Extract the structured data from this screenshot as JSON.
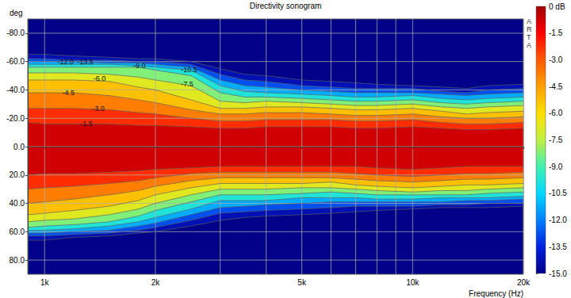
{
  "chart_data": {
    "type": "contour",
    "title": "Directivity sonogram",
    "x_label": "Frequency (Hz)",
    "y_label": "deg",
    "watermark": "ARTA",
    "log": "x",
    "grid": true,
    "xlim": [
      900,
      20000
    ],
    "xticks": [
      {
        "value": 1000,
        "label": "1k"
      },
      {
        "value": 2000,
        "label": "2k"
      },
      {
        "value": 5000,
        "label": "5k"
      },
      {
        "value": 10000,
        "label": "10k"
      },
      {
        "value": 20000,
        "label": "20k"
      }
    ],
    "x_minor_gridlines": [
      3000,
      4000,
      6000,
      7000,
      8000,
      9000
    ],
    "ylim": [
      90,
      -90
    ],
    "yticks": [
      {
        "value": -80,
        "label": "-80.0"
      },
      {
        "value": -60,
        "label": "-60.0"
      },
      {
        "value": -40,
        "label": "-40.0"
      },
      {
        "value": -20,
        "label": "-20.0"
      },
      {
        "value": 0,
        "label": "0.0"
      },
      {
        "value": 20,
        "label": "20.0"
      },
      {
        "value": 40,
        "label": "40.0"
      },
      {
        "value": 60,
        "label": "60.0"
      },
      {
        "value": 80,
        "label": "80.0"
      }
    ],
    "frequencies": [
      900,
      1000,
      1200,
      1500,
      1800,
      2000,
      2500,
      3000,
      3500,
      4000,
      5000,
      6000,
      7000,
      8000,
      10000,
      12000,
      14000,
      16000,
      20000
    ],
    "contours": [
      {
        "level": -1.5,
        "label": "-1.5",
        "label_at": [
          1300,
          -16
        ],
        "upper": [
          -17,
          -16,
          -16,
          -16,
          -15,
          -15,
          -14,
          -13,
          -13,
          -14,
          -14,
          -14,
          -13,
          -13,
          -14,
          -13,
          -12,
          -12,
          -13
        ],
        "lower": [
          20,
          19,
          19,
          18,
          17,
          16,
          15,
          14,
          14,
          14,
          14,
          14,
          14,
          15,
          16,
          15,
          14,
          14,
          14
        ]
      },
      {
        "level": -3,
        "label": "-3.0",
        "label_at": [
          1400,
          -27
        ],
        "upper": [
          -27,
          -27,
          -27,
          -26,
          -24,
          -23,
          -20,
          -18,
          -18,
          -19,
          -19,
          -19,
          -18,
          -18,
          -19,
          -17,
          -16,
          -16,
          -17
        ],
        "lower": [
          30,
          29,
          28,
          26,
          24,
          22,
          19,
          18,
          18,
          18,
          18,
          18,
          19,
          20,
          21,
          20,
          19,
          19,
          18
        ]
      },
      {
        "level": -4.5,
        "label": "-4.5",
        "label_at": [
          1160,
          -38
        ],
        "upper": [
          -38,
          -38,
          -38,
          -36,
          -33,
          -31,
          -26,
          -23,
          -23,
          -24,
          -24,
          -23,
          -22,
          -22,
          -23,
          -21,
          -20,
          -20,
          -21
        ],
        "lower": [
          40,
          39,
          37,
          34,
          31,
          28,
          24,
          22,
          22,
          22,
          22,
          22,
          23,
          24,
          25,
          24,
          23,
          23,
          22
        ]
      },
      {
        "level": -6,
        "label": "-6.0",
        "label_at": [
          1410,
          -48
        ],
        "upper": [
          -47,
          -47,
          -47,
          -46,
          -42,
          -40,
          -33,
          -27,
          -27,
          -28,
          -28,
          -27,
          -26,
          -26,
          -27,
          -25,
          -23,
          -24,
          -25
        ],
        "lower": [
          48,
          47,
          45,
          42,
          38,
          34,
          29,
          26,
          26,
          26,
          26,
          25,
          27,
          28,
          29,
          28,
          27,
          27,
          26
        ]
      },
      {
        "level": -7.5,
        "label": "-7.5",
        "label_at": [
          2440,
          -44
        ],
        "upper": [
          -52,
          -52,
          -52,
          -51,
          -49,
          -47,
          -43,
          -32,
          -31,
          -32,
          -31,
          -30,
          -29,
          -29,
          -30,
          -28,
          -27,
          -28,
          -29
        ],
        "lower": [
          53,
          52,
          51,
          48,
          44,
          40,
          34,
          30,
          30,
          30,
          29,
          29,
          30,
          31,
          32,
          31,
          31,
          30,
          29
        ]
      },
      {
        "level": -9,
        "label": "-9.0",
        "label_at": [
          1810,
          -57
        ],
        "upper": [
          -56,
          -56,
          -56,
          -56,
          -56,
          -54,
          -50,
          -38,
          -35,
          -35,
          -34,
          -33,
          -32,
          -32,
          -33,
          -31,
          -30,
          -31,
          -32
        ],
        "lower": [
          57,
          56,
          55,
          53,
          49,
          45,
          39,
          34,
          34,
          34,
          33,
          32,
          33,
          34,
          34,
          34,
          34,
          33,
          32
        ]
      },
      {
        "level": -10.5,
        "label": "-10.5",
        "label_at": [
          2470,
          -54
        ],
        "upper": [
          -58,
          -58,
          -58,
          -58,
          -57,
          -56,
          -54,
          -43,
          -39,
          -38,
          -37,
          -36,
          -35,
          -35,
          -36,
          -34,
          -33,
          -34,
          -35
        ],
        "lower": [
          59,
          59,
          58,
          56,
          53,
          50,
          44,
          38,
          38,
          38,
          36,
          36,
          36,
          37,
          37,
          36,
          36,
          36,
          35
        ]
      },
      {
        "level": -12,
        "label": "-12.0",
        "label_at": [
          1140,
          -60
        ],
        "upper": [
          -60,
          -60,
          -60,
          -59,
          -59,
          -58,
          -56,
          -47,
          -43,
          -42,
          -40,
          -39,
          -38,
          -38,
          -38,
          -37,
          -36,
          -37,
          -38
        ],
        "lower": [
          61,
          61,
          60,
          59,
          56,
          54,
          48,
          43,
          42,
          41,
          40,
          39,
          39,
          39,
          39,
          39,
          38,
          38,
          37
        ]
      },
      {
        "level": -13.5,
        "label": "-13.5",
        "label_at": [
          1290,
          -60
        ],
        "upper": [
          -62,
          -62,
          -61,
          -61,
          -60,
          -60,
          -58,
          -51,
          -47,
          -46,
          -43,
          -42,
          -41,
          -41,
          -41,
          -39,
          -38,
          -40,
          -41
        ],
        "lower": [
          63,
          63,
          62,
          61,
          59,
          57,
          52,
          47,
          46,
          45,
          44,
          43,
          42,
          42,
          42,
          41,
          41,
          40,
          40
        ]
      },
      {
        "level": -15,
        "upper": [
          -65,
          -65,
          -64,
          -63,
          -62,
          -62,
          -60,
          -55,
          -51,
          -50,
          -47,
          -46,
          -45,
          -44,
          -43,
          -42,
          -41,
          -43,
          -44
        ],
        "lower": [
          66,
          66,
          64,
          63,
          61,
          60,
          56,
          52,
          50,
          49,
          48,
          47,
          46,
          45,
          44,
          43,
          43,
          43,
          42
        ]
      }
    ],
    "colorbar": {
      "range": [
        -15,
        0
      ],
      "ticks": [
        {
          "value": 0,
          "label": "0 dB"
        },
        -1.5,
        {
          "value": -3,
          "label": "-3.0"
        },
        -4.5,
        {
          "value": -6,
          "label": "-6.0"
        },
        -7.5,
        {
          "value": -9,
          "label": "-9.0"
        },
        -10.5,
        {
          "value": -12,
          "label": "-12.0"
        },
        -13.5,
        {
          "value": -15,
          "label": "-15.0"
        }
      ]
    }
  }
}
